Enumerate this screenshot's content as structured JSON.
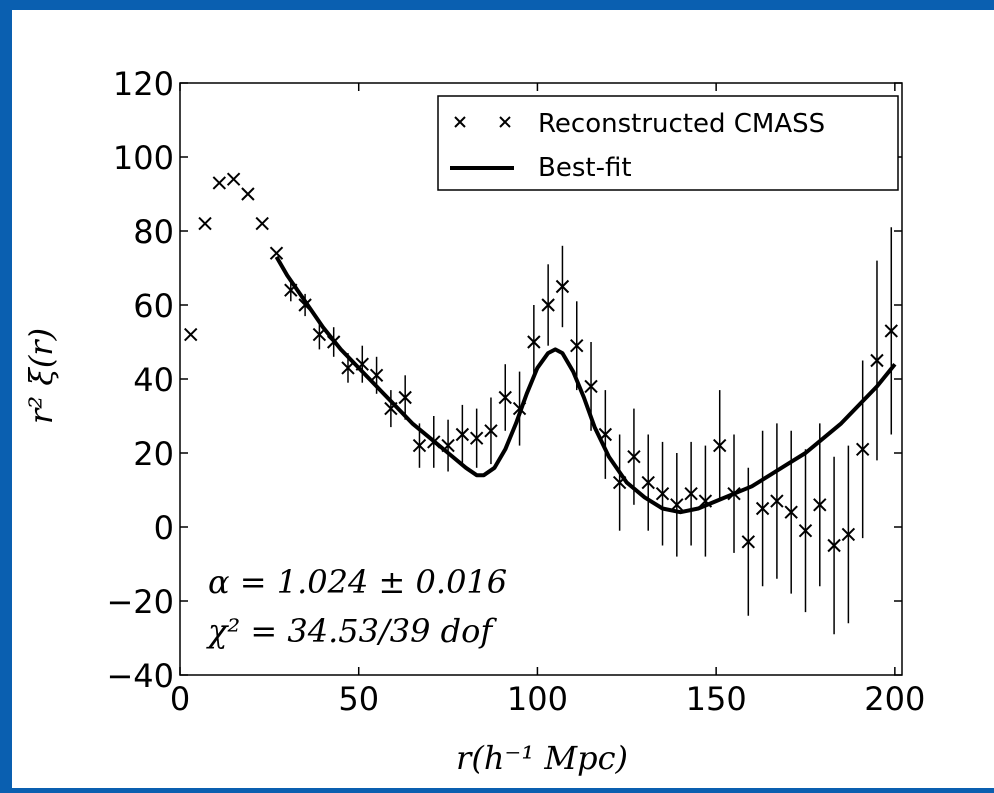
{
  "chart_data": {
    "type": "scatter",
    "xlabel": "r(h⁻¹ Mpc)",
    "ylabel": "r² ξ(r)",
    "xlim": [
      0,
      202
    ],
    "ylim": [
      -40,
      120
    ],
    "x_ticks": [
      "0",
      "50",
      "100",
      "150",
      "200"
    ],
    "y_ticks": [
      "−40",
      "−20",
      "0",
      "20",
      "40",
      "60",
      "80",
      "100",
      "120"
    ],
    "legend_position": "top-right",
    "grid": false,
    "annotations": [
      "α = 1.024 ± 0.016",
      "χ² = 34.53/39  dof"
    ],
    "series": [
      {
        "name": "Reconstructed CMASS",
        "kind": "points-with-errorbars",
        "x": [
          3,
          7,
          11,
          15,
          19,
          23,
          27,
          31,
          35,
          39,
          43,
          47,
          51,
          55,
          59,
          63,
          67,
          71,
          75,
          79,
          83,
          87,
          91,
          95,
          99,
          103,
          107,
          111,
          115,
          119,
          123,
          127,
          131,
          135,
          139,
          143,
          147,
          151,
          155,
          159,
          163,
          167,
          171,
          175,
          179,
          183,
          187,
          191,
          195,
          199
        ],
        "y": [
          52,
          82,
          93,
          94,
          90,
          82,
          74,
          64,
          60,
          52,
          50,
          43,
          44,
          41,
          32,
          35,
          22,
          23,
          22,
          25,
          24,
          26,
          35,
          32,
          50,
          60,
          65,
          49,
          38,
          25,
          12,
          19,
          12,
          9,
          6,
          9,
          7,
          22,
          9,
          -4,
          5,
          7,
          4,
          -1,
          6,
          -5,
          -2,
          21,
          45,
          53
        ],
        "yerr": [
          0,
          0,
          0,
          0,
          0,
          0,
          0,
          3,
          3,
          4,
          4,
          4,
          5,
          5,
          5,
          6,
          6,
          7,
          7,
          8,
          8,
          9,
          9,
          10,
          10,
          11,
          11,
          12,
          12,
          12,
          13,
          13,
          13,
          14,
          14,
          14,
          15,
          15,
          16,
          20,
          21,
          21,
          22,
          22,
          22,
          24,
          24,
          24,
          27,
          28
        ]
      },
      {
        "name": "Best-fit",
        "kind": "line",
        "x": [
          27,
          30,
          35,
          40,
          45,
          50,
          55,
          60,
          65,
          70,
          75,
          80,
          83,
          85,
          88,
          91,
          94,
          97,
          100,
          103,
          105,
          107,
          110,
          113,
          116,
          120,
          125,
          130,
          135,
          140,
          145,
          150,
          155,
          160,
          165,
          170,
          175,
          180,
          185,
          190,
          195,
          200
        ],
        "y": [
          73,
          68,
          61,
          54,
          48,
          43,
          38,
          33,
          28,
          24,
          20,
          16,
          14,
          14,
          16,
          21,
          28,
          36,
          43,
          47,
          48,
          47,
          42,
          35,
          27,
          19,
          12,
          8,
          5,
          4,
          5,
          7,
          9,
          11,
          14,
          17,
          20,
          24,
          28,
          33,
          38,
          44
        ]
      }
    ]
  }
}
